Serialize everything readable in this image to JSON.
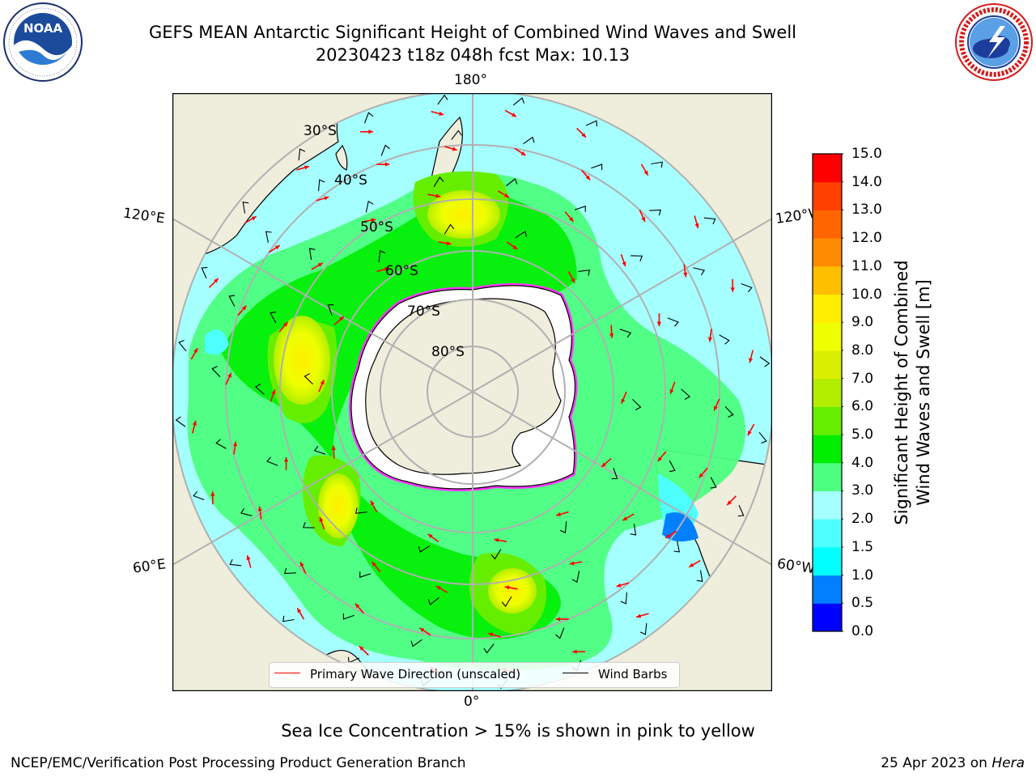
{
  "header": {
    "title_line1": "GEFS MEAN Antarctic Significant Height of Combined Wind Waves and Swell",
    "title_line2": "20230423 t18z 048h fcst   Max: 10.13"
  },
  "logos": {
    "left": {
      "name": "noaa-logo",
      "text": "NOAA",
      "ring_text": "NATIONAL OCEANIC AND ATMOSPHERIC ADMINISTRATION · U.S. DEPARTMENT OF COMMERCE"
    },
    "right": {
      "name": "nws-logo",
      "ring_text": "NATIONAL WEATHER SERVICE"
    }
  },
  "map": {
    "projection": "south-polar-stereographic",
    "longitude_labels": {
      "top": "180°",
      "bottom": "0°",
      "upper_left": "120°E",
      "upper_right": "120°W",
      "lower_left": "60°E",
      "lower_right": "60°W"
    },
    "latitude_labels": [
      "30°S",
      "40°S",
      "50°S",
      "60°S",
      "70°S",
      "80°S"
    ],
    "colors": {
      "land": "#efeddc",
      "ocean_low": "#a5ffff",
      "grid": "#b0b0b0"
    }
  },
  "legend": {
    "entries": [
      {
        "label": "Primary Wave Direction (unscaled)",
        "color": "#ff0000"
      },
      {
        "label": "Wind Barbs",
        "color": "#000000"
      }
    ]
  },
  "colorbar": {
    "title_line1": "Significant Height of Combined",
    "title_line2": "Wind Waves and Swell [m]",
    "ticks": [
      "0.0",
      "0.5",
      "1.0",
      "1.5",
      "2.0",
      "3.0",
      "4.0",
      "5.0",
      "6.0",
      "7.0",
      "8.0",
      "9.0",
      "10.0",
      "11.0",
      "12.0",
      "13.0",
      "14.0",
      "15.0"
    ],
    "colors": [
      "#0000ff",
      "#0080ff",
      "#00ffff",
      "#4dffff",
      "#a5ffff",
      "#4cff80",
      "#00ee00",
      "#66ee00",
      "#b3ee00",
      "#d9ee00",
      "#eeff00",
      "#ffee00",
      "#ffbf00",
      "#ff8c00",
      "#ff6600",
      "#ff4000",
      "#ff0000"
    ]
  },
  "footer": {
    "note": "Sea Ice Concentration > 15% is shown in pink to yellow",
    "left": "NCEP/EMC/Verification Post Processing Product Generation Branch",
    "right_prefix": "25 Apr 2023 on ",
    "right_host": "Hera"
  }
}
